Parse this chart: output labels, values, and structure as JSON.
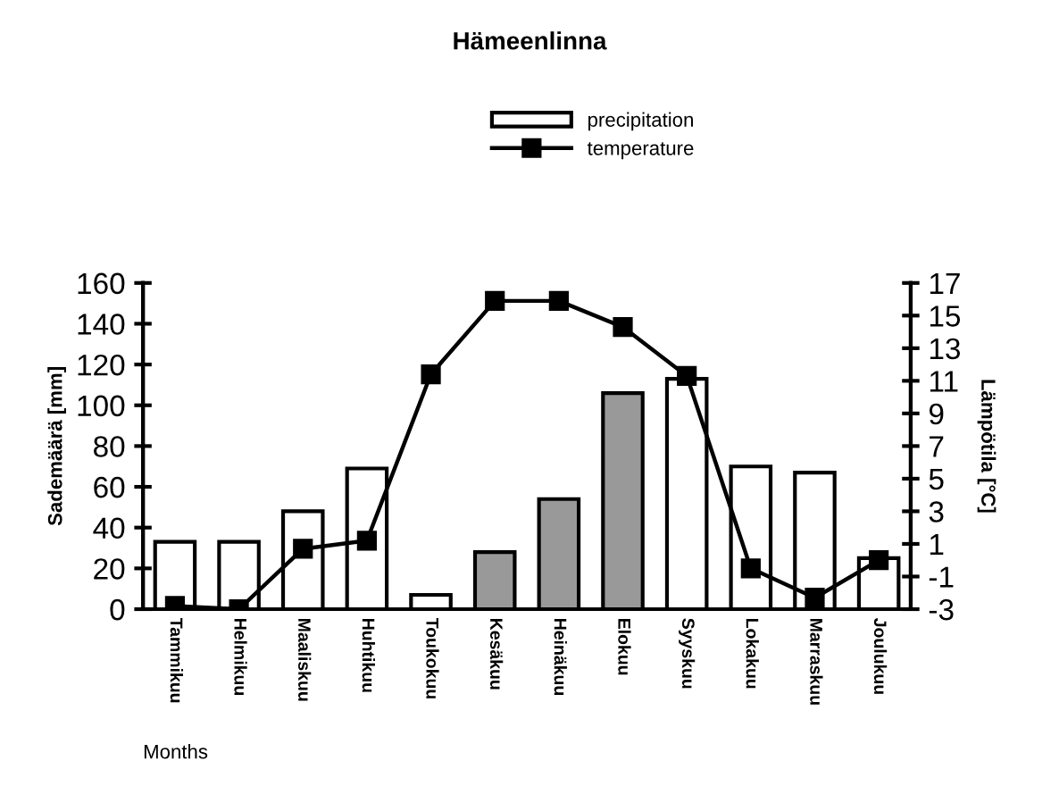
{
  "chart_data": {
    "type": "bar",
    "title": "Hämeenlinna",
    "xlabel": "Months",
    "ylabel": "Sademäärä [mm]",
    "y2label": "Lämpötila [°C]",
    "categories": [
      "Tammikuu",
      "Helmikuu",
      "Maaliskuu",
      "Huhtikuu",
      "Toukokuu",
      "Kesäkuu",
      "Heinäkuu",
      "Elokuu",
      "Syyskuu",
      "Lokakuu",
      "Marraskuu",
      "Joulukuu"
    ],
    "series": [
      {
        "name": "precipitation",
        "color": "#ffffff",
        "colors": [
          "#ffffff",
          "#ffffff",
          "#ffffff",
          "#ffffff",
          "#ffffff",
          "#999999",
          "#999999",
          "#999999",
          "#ffffff",
          "#ffffff",
          "#ffffff",
          "#ffffff"
        ],
        "values": [
          33,
          33,
          48,
          69,
          7,
          28,
          54,
          106,
          113,
          70,
          67,
          25
        ]
      },
      {
        "name": "temperature",
        "type": "line",
        "axis": "y2",
        "color": "#000000",
        "values": [
          -2.8,
          -3,
          0.7,
          1.2,
          11.4,
          15.9,
          15.9,
          14.3,
          11.3,
          -0.5,
          -2.3,
          0.0
        ]
      }
    ],
    "ylim": [
      0,
      160
    ],
    "yticks": [
      0,
      20,
      40,
      60,
      80,
      100,
      120,
      140,
      160
    ],
    "y2lim": [
      -3,
      17
    ],
    "y2ticks": [
      -3,
      -1,
      1,
      3,
      5,
      7,
      9,
      11,
      13,
      15,
      17
    ],
    "marker": "square",
    "line_style": "solid",
    "grid": false,
    "legend": "top"
  }
}
